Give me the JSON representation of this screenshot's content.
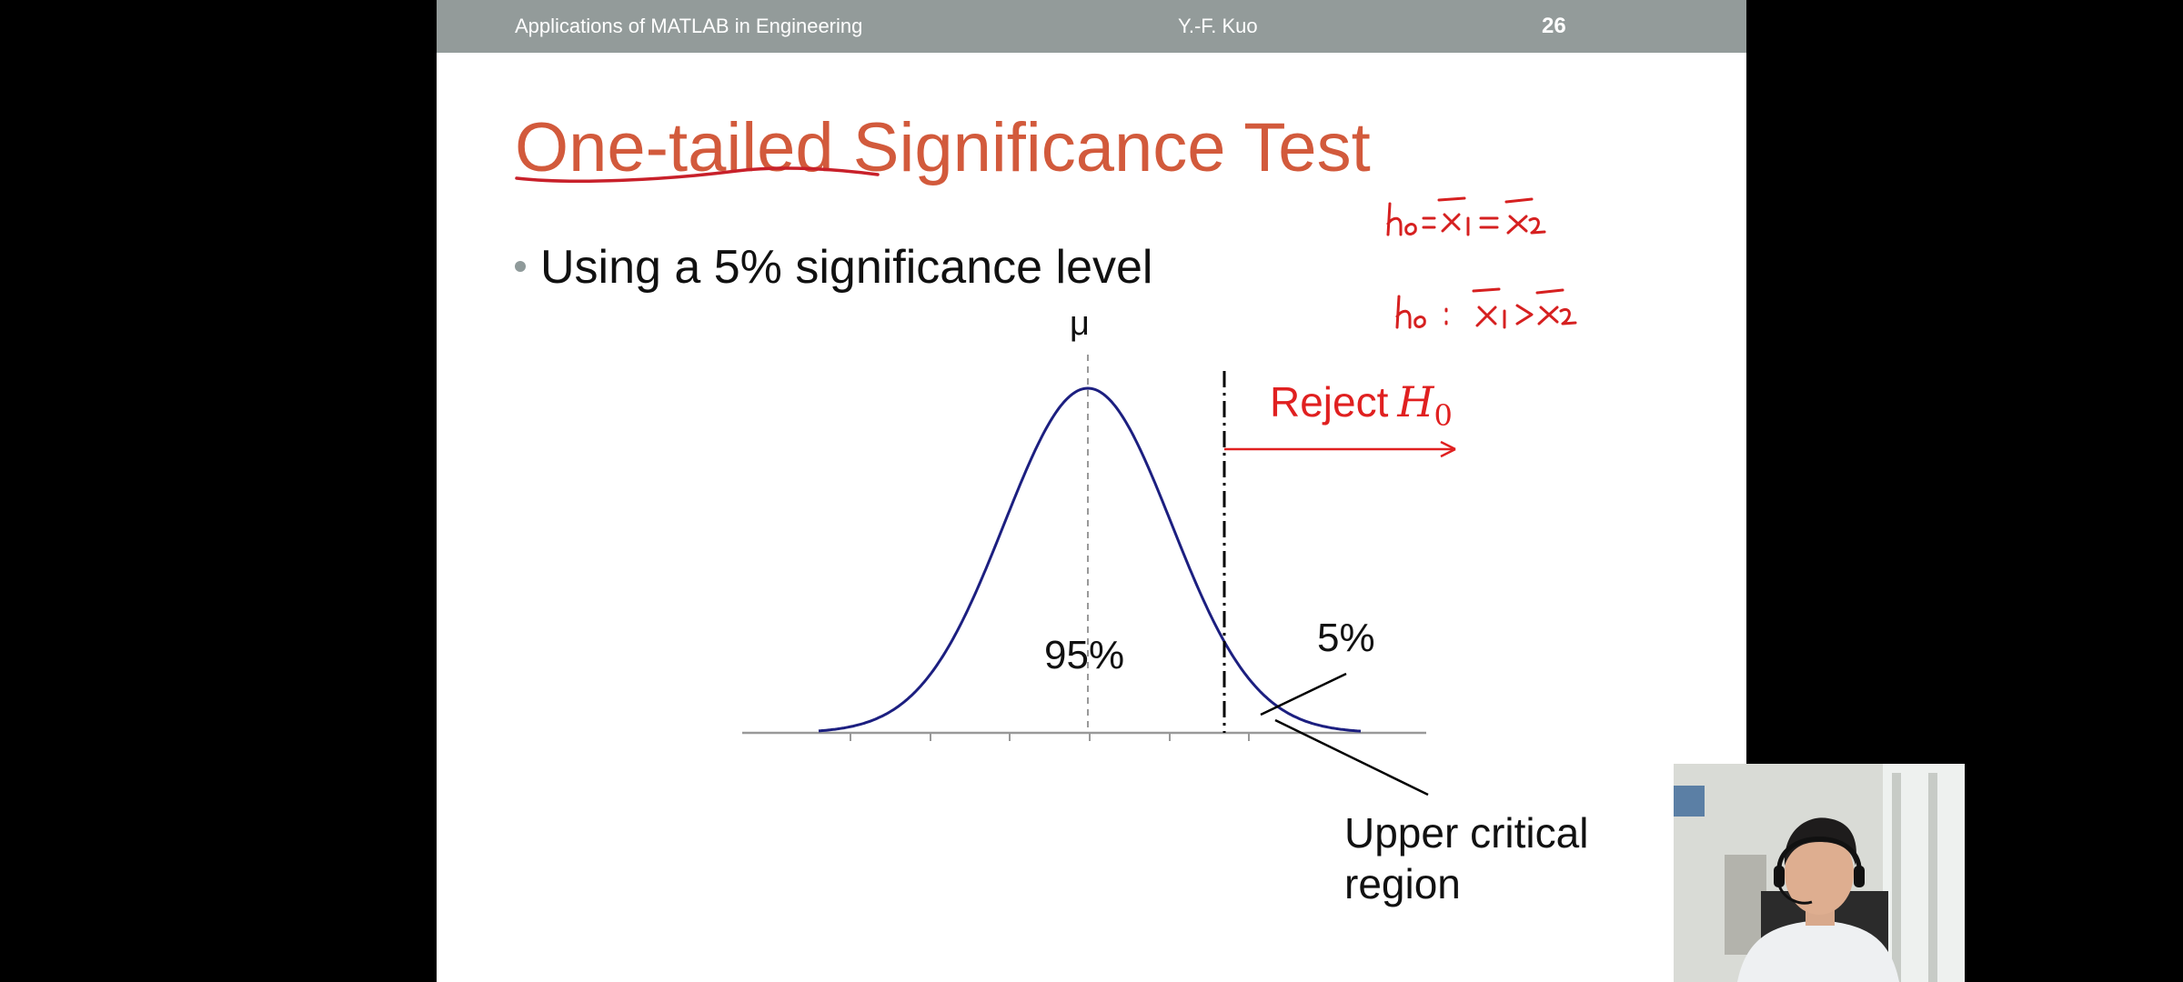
{
  "header": {
    "course": "Applications of MATLAB in Engineering",
    "author": "Y.-F. Kuo",
    "page_number": "26"
  },
  "slide": {
    "title": "One-tailed Significance Test",
    "bullets": [
      "Using a 5% significance level"
    ]
  },
  "figure": {
    "mean_label": "μ",
    "reject_label": "Reject",
    "reject_symbol": "H",
    "reject_subscript": "0",
    "center_area_label": "95%",
    "tail_area_label": "5%",
    "region_label_line1": "Upper critical",
    "region_label_line2": "region"
  },
  "annotations": {
    "line1": "h₀ : x̄₁ = x̄₂",
    "line2": "h₀ : x̄₁ > x̄₂"
  },
  "colors": {
    "title": "#d25a3c",
    "header_bg": "#939b9a",
    "curve": "#1c1f80",
    "reject": "#e02020",
    "annotation_ink": "#d62020"
  },
  "icons": {
    "bullet": "bullet-dot-icon"
  }
}
